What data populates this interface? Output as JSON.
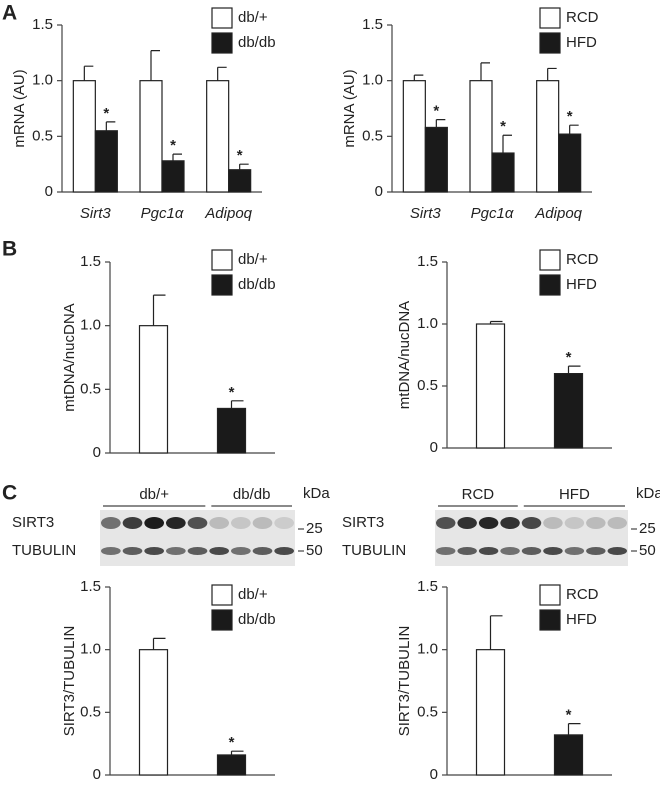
{
  "panels": [
    "A",
    "B",
    "C"
  ],
  "chart_data": [
    {
      "type": "bar",
      "ylabel": "mRNA (AU)",
      "categories": [
        "Sirt3",
        "Pgc1α",
        "Adipoq"
      ],
      "ylim": [
        0,
        1.5
      ],
      "yticks": [
        0,
        0.5,
        {
          "value": 1,
          "label": "1.0"
        },
        1.5
      ],
      "legend": "upper right",
      "series": [
        {
          "name": "db/+",
          "color": "#ffffff",
          "values": [
            1,
            1,
            1
          ],
          "errors": [
            0.13,
            0.27,
            0.12
          ]
        },
        {
          "name": "db/db",
          "color": "#1a1a1a",
          "values": [
            0.55,
            0.28,
            0.2
          ],
          "errors": [
            0.08,
            0.06,
            0.05
          ],
          "value_annotations": [
            "*",
            "*",
            "*"
          ]
        }
      ]
    },
    {
      "type": "bar",
      "ylabel": "mRNA (AU)",
      "categories": [
        "Sirt3",
        "Pgc1α",
        "Adipoq"
      ],
      "ylim": [
        0,
        1.5
      ],
      "yticks": [
        0,
        0.5,
        {
          "value": 1,
          "label": "1.0"
        },
        1.5
      ],
      "legend": "upper right",
      "series": [
        {
          "name": "RCD",
          "color": "#ffffff",
          "values": [
            1,
            1,
            1
          ],
          "errors": [
            0.05,
            0.16,
            0.11
          ]
        },
        {
          "name": "HFD",
          "color": "#1a1a1a",
          "values": [
            0.58,
            0.35,
            0.52
          ],
          "errors": [
            0.07,
            0.16,
            0.08
          ],
          "value_annotations": [
            "*",
            "*",
            "*"
          ]
        }
      ]
    },
    {
      "type": "bar",
      "ylabel": "mtDNA/nucDNA",
      "ylim": [
        0,
        1.5
      ],
      "yticks": [
        0,
        0.5,
        {
          "value": 1,
          "label": "1.0"
        },
        1.5
      ],
      "legend": "upper right",
      "series": [
        {
          "name": "db/+",
          "color": "#ffffff",
          "values": [
            1
          ],
          "errors": [
            0.24
          ]
        },
        {
          "name": "db/db",
          "color": "#1a1a1a",
          "values": [
            0.35
          ],
          "errors": [
            0.06
          ],
          "value_annotations": [
            "*"
          ]
        }
      ]
    },
    {
      "type": "bar",
      "ylabel": "mtDNA/nucDNA",
      "ylim": [
        0,
        1.5
      ],
      "yticks": [
        0,
        0.5,
        {
          "value": 1,
          "label": "1.0"
        },
        1.5
      ],
      "legend": "upper right",
      "series": [
        {
          "name": "RCD",
          "color": "#ffffff",
          "values": [
            1
          ],
          "errors": [
            0.02
          ]
        },
        {
          "name": "HFD",
          "color": "#1a1a1a",
          "values": [
            0.6
          ],
          "errors": [
            0.06
          ],
          "value_annotations": [
            "*"
          ]
        }
      ]
    },
    {
      "type": "bar",
      "ylabel": "SIRT3/TUBULIN",
      "ylim": [
        0,
        1.5
      ],
      "yticks": [
        0,
        0.5,
        {
          "value": 1,
          "label": "1.0"
        },
        1.5
      ],
      "legend": "upper right",
      "series": [
        {
          "name": "db/+",
          "color": "#ffffff",
          "values": [
            1
          ],
          "errors": [
            0.09
          ]
        },
        {
          "name": "db/db",
          "color": "#1a1a1a",
          "values": [
            0.16
          ],
          "errors": [
            0.03
          ],
          "value_annotations": [
            "*"
          ]
        }
      ],
      "blot": {
        "groups": [
          "db/+",
          "db/db"
        ],
        "unit": "kDa",
        "rows": [
          "SIRT3",
          "TUBULIN"
        ],
        "markers": [
          25,
          50
        ]
      }
    },
    {
      "type": "bar",
      "ylabel": "SIRT3/TUBULIN",
      "ylim": [
        0,
        1.5
      ],
      "yticks": [
        0,
        0.5,
        {
          "value": 1,
          "label": "1.0"
        },
        1.5
      ],
      "legend": "upper right",
      "series": [
        {
          "name": "RCD",
          "color": "#ffffff",
          "values": [
            1
          ],
          "errors": [
            0.27
          ]
        },
        {
          "name": "HFD",
          "color": "#1a1a1a",
          "values": [
            0.32
          ],
          "errors": [
            0.09
          ],
          "value_annotations": [
            "*"
          ]
        }
      ],
      "blot": {
        "groups": [
          "RCD",
          "HFD"
        ],
        "unit": "kDa",
        "rows": [
          "SIRT3",
          "TUBULIN"
        ],
        "markers": [
          25,
          50
        ]
      }
    }
  ]
}
